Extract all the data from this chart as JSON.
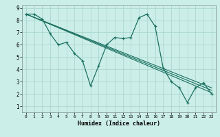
{
  "xlabel": "Humidex (Indice chaleur)",
  "bg_color": "#cceee8",
  "grid_color": "#aad8d0",
  "line_color": "#1a7060",
  "xlim": [
    -0.5,
    23.5
  ],
  "ylim": [
    0.5,
    9.2
  ],
  "xticks": [
    0,
    1,
    2,
    3,
    4,
    5,
    6,
    7,
    8,
    9,
    10,
    11,
    12,
    13,
    14,
    15,
    16,
    17,
    18,
    19,
    20,
    21,
    22,
    23
  ],
  "yticks": [
    1,
    2,
    3,
    4,
    5,
    6,
    7,
    8,
    9
  ],
  "main_line": {
    "x": [
      0,
      1,
      2,
      3,
      4,
      5,
      6,
      7,
      8,
      9,
      10,
      11,
      12,
      13,
      14,
      15,
      16,
      17,
      18,
      19,
      20,
      21,
      22,
      23
    ],
    "y": [
      8.5,
      8.5,
      8.1,
      6.9,
      6.0,
      6.2,
      5.3,
      4.7,
      2.65,
      4.3,
      6.0,
      6.6,
      6.5,
      6.6,
      8.2,
      8.5,
      7.5,
      4.1,
      3.0,
      2.5,
      1.3,
      2.5,
      2.9,
      2.0
    ]
  },
  "trend_lines": [
    {
      "x": [
        0,
        23
      ],
      "y": [
        8.5,
        2.1
      ]
    },
    {
      "x": [
        0,
        23
      ],
      "y": [
        8.5,
        2.3
      ]
    },
    {
      "x": [
        0,
        23
      ],
      "y": [
        8.5,
        2.5
      ]
    }
  ]
}
